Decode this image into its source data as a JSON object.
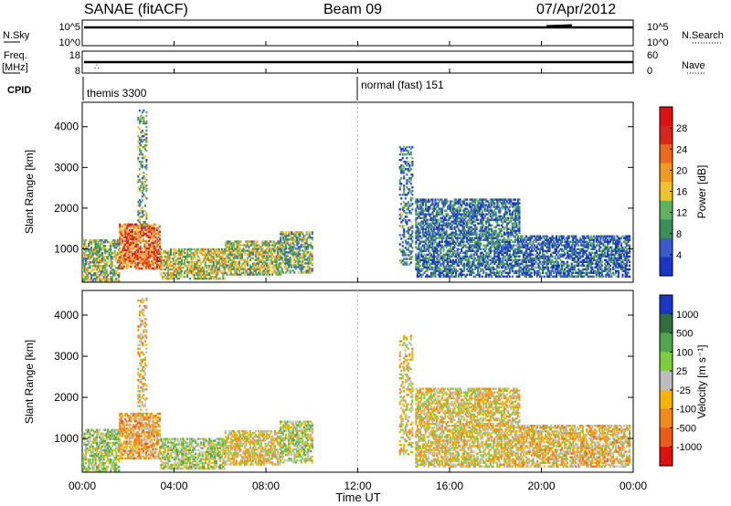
{
  "header": {
    "title_left": "SANAE (fitACF)",
    "title_center": "Beam 09",
    "title_right": "07/Apr/2012"
  },
  "nsky": {
    "label": "N.Sky",
    "ticks_left": [
      "10^5",
      "10^0"
    ],
    "label_right": "N.Search",
    "ticks_right": [
      "10^5",
      "10^0"
    ]
  },
  "freq": {
    "label": "Freq.",
    "unit": "[MHz]",
    "ticks_left": [
      "18",
      "8"
    ],
    "label_right": "Nave",
    "ticks_right": [
      "60",
      "0"
    ]
  },
  "cpid": {
    "label": "CPID",
    "segments": [
      {
        "name": "themis 3300",
        "start_hr": 0
      },
      {
        "name": "normal (fast) 151",
        "start_hr": 12
      }
    ]
  },
  "panels": {
    "power": {
      "ylabel": "Slant Range [km]",
      "yticks": [
        "1000",
        "2000",
        "3000",
        "4000"
      ],
      "colorbar_label": "Power [dB]",
      "colorbar_ticks": [
        "4",
        "8",
        "12",
        "16",
        "20",
        "24",
        "28"
      ]
    },
    "velocity": {
      "ylabel": "Slant Range [km]",
      "yticks": [
        "1000",
        "2000",
        "3000",
        "4000"
      ],
      "colorbar_label": "Velocity [m s⁻¹]",
      "colorbar_ticks": [
        "1000",
        "500",
        "100",
        "25",
        "-25",
        "-100",
        "-500",
        "-1000"
      ]
    }
  },
  "xaxis": {
    "label": "Time UT",
    "ticks": [
      "00:00",
      "04:00",
      "08:00",
      "12:00",
      "16:00",
      "20:00",
      "00:00"
    ]
  },
  "colors": {
    "power_scale": [
      "#1a36c7",
      "#3a5bd0",
      "#3b8f5a",
      "#5fb35f",
      "#f2c12e",
      "#f29a1e",
      "#ec6a1a",
      "#d9261c",
      "#e01010"
    ],
    "velocity_scale": [
      "#1a36c7",
      "#2f6f3d",
      "#4ea84e",
      "#7ccf3a",
      "#bdbdbd",
      "#f4b400",
      "#f08a1a",
      "#ee5a18",
      "#e01010"
    ]
  },
  "chart_data": [
    {
      "type": "heatmap",
      "title": "Power",
      "xlabel": "Time UT",
      "ylabel": "Slant Range [km]",
      "x_range_hr": [
        0,
        24
      ],
      "y_range_km": [
        180,
        4600
      ],
      "value_label": "Power [dB]",
      "value_range": [
        0,
        30
      ],
      "clusters": [
        {
          "t0": 0.0,
          "t1": 1.6,
          "r0": 200,
          "r1": 1200,
          "level": 12
        },
        {
          "t0": 1.6,
          "t1": 3.4,
          "r0": 500,
          "r1": 1600,
          "level": 22
        },
        {
          "t0": 3.4,
          "t1": 6.2,
          "r0": 250,
          "r1": 1000,
          "level": 14
        },
        {
          "t0": 6.2,
          "t1": 8.6,
          "r0": 350,
          "r1": 1200,
          "level": 13
        },
        {
          "t0": 8.6,
          "t1": 10.0,
          "r0": 400,
          "r1": 1400,
          "level": 11
        },
        {
          "t0": 2.4,
          "t1": 2.8,
          "r0": 1500,
          "r1": 4400,
          "level": 10
        },
        {
          "t0": 13.8,
          "t1": 14.4,
          "r0": 600,
          "r1": 3500,
          "level": 7
        },
        {
          "t0": 14.5,
          "t1": 19.0,
          "r0": 300,
          "r1": 2200,
          "level": 6
        },
        {
          "t0": 19.0,
          "t1": 23.8,
          "r0": 300,
          "r1": 1300,
          "level": 5
        }
      ]
    },
    {
      "type": "heatmap",
      "title": "Velocity",
      "xlabel": "Time UT",
      "ylabel": "Slant Range [km]",
      "x_range_hr": [
        0,
        24
      ],
      "y_range_km": [
        180,
        4600
      ],
      "value_label": "Velocity [m s⁻¹]",
      "value_range": [
        -1000,
        1000
      ],
      "clusters": [
        {
          "t0": 0.0,
          "t1": 1.6,
          "r0": 200,
          "r1": 1200,
          "level": 150
        },
        {
          "t0": 1.6,
          "t1": 3.4,
          "r0": 500,
          "r1": 1600,
          "level": -300
        },
        {
          "t0": 3.4,
          "t1": 6.2,
          "r0": 250,
          "r1": 1000,
          "level": 120
        },
        {
          "t0": 6.2,
          "t1": 8.6,
          "r0": 350,
          "r1": 1200,
          "level": -120
        },
        {
          "t0": 8.6,
          "t1": 10.0,
          "r0": 400,
          "r1": 1400,
          "level": 80
        },
        {
          "t0": 2.4,
          "t1": 2.8,
          "r0": 1500,
          "r1": 4400,
          "level": -200
        },
        {
          "t0": 13.8,
          "t1": 14.4,
          "r0": 600,
          "r1": 3500,
          "level": -150
        },
        {
          "t0": 14.5,
          "t1": 19.0,
          "r0": 300,
          "r1": 2200,
          "level": -120
        },
        {
          "t0": 19.0,
          "t1": 23.8,
          "r0": 300,
          "r1": 1300,
          "level": -200
        }
      ]
    }
  ]
}
